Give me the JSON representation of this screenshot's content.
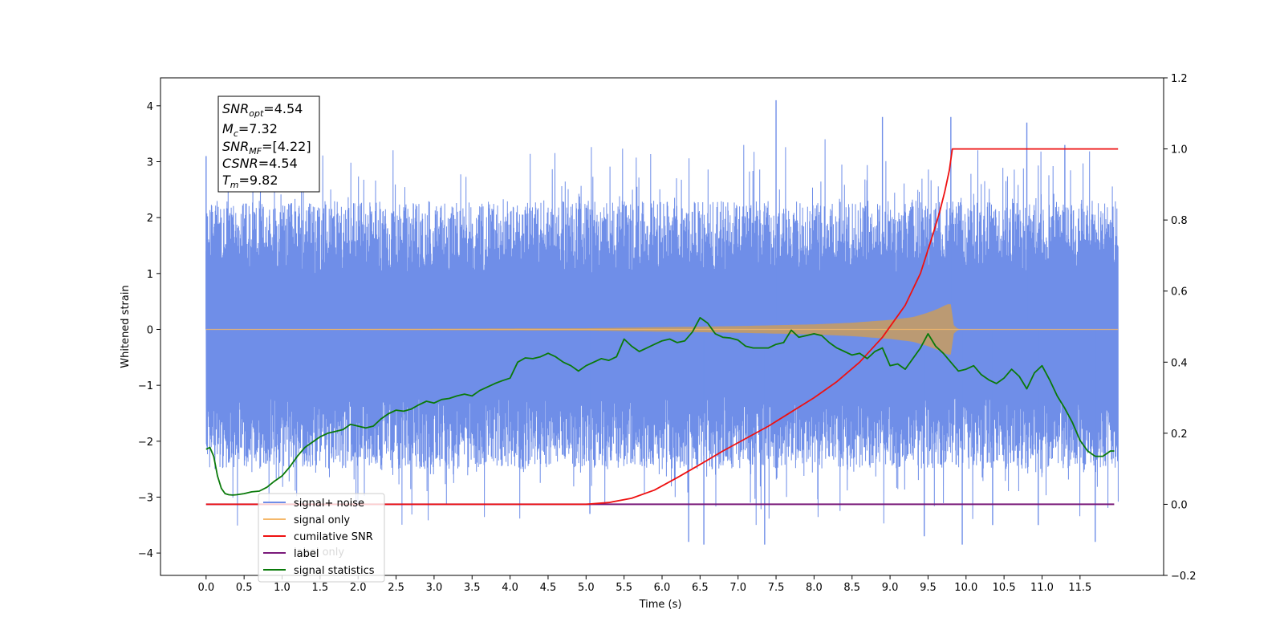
{
  "chart_data": {
    "type": "line",
    "title": "",
    "xlabel": "Time (s)",
    "ylabel_left": "Whitened strain",
    "ylabel_right": "",
    "xlim": [
      -0.6,
      12.6
    ],
    "ylim_left": [
      -4.4,
      4.5
    ],
    "ylim_right": [
      -0.2,
      1.2
    ],
    "x_ticks": [
      "0.0",
      "0.5",
      "1.0",
      "1.5",
      "2.0",
      "2.5",
      "3.0",
      "3.5",
      "4.0",
      "4.5",
      "5.0",
      "5.5",
      "6.0",
      "6.5",
      "7.0",
      "7.5",
      "8.0",
      "8.5",
      "9.0",
      "9.5",
      "10.0",
      "10.5",
      "11.0",
      "11.5"
    ],
    "y_ticks_left": [
      "4",
      "3",
      "2",
      "1",
      "0",
      "−1",
      "−2",
      "−3",
      "−4"
    ],
    "y_ticks_right": [
      "1.2",
      "1.0",
      "0.8",
      "0.6",
      "0.4",
      "0.2",
      "0.0",
      "−0.2"
    ],
    "grid": false,
    "legend_position": "bottom-left",
    "series": [
      {
        "name": "signal+ noise",
        "axis": "left",
        "color": "#6f8ee8",
        "description_values": {
          "x_range": [
            0.0,
            12.0
          ],
          "band_upper_typical": 2.0,
          "band_lower_typical": -2.0,
          "peaks": [
            [
              0.0,
              3.1
            ],
            [
              7.5,
              4.1
            ],
            [
              9.8,
              3.8
            ],
            [
              8.9,
              3.8
            ],
            [
              10.8,
              3.7
            ],
            [
              11.3,
              3.3
            ]
          ],
          "troughs": [
            [
              6.35,
              -3.8
            ],
            [
              6.55,
              -3.85
            ],
            [
              7.35,
              -3.85
            ],
            [
              9.45,
              -3.7
            ],
            [
              9.95,
              -3.85
            ],
            [
              10.35,
              -3.5
            ],
            [
              10.95,
              -3.5
            ],
            [
              11.7,
              -3.8
            ],
            [
              5.05,
              -3.3
            ]
          ]
        }
      },
      {
        "name": "signal only",
        "axis": "left",
        "color": "#f5b86a",
        "envelope_x": [
          0.0,
          5.0,
          6.0,
          7.0,
          8.0,
          8.5,
          9.0,
          9.3,
          9.5,
          9.65,
          9.75,
          9.8,
          9.82,
          9.9,
          12.0
        ],
        "envelope_amp": [
          0.0,
          0.02,
          0.04,
          0.06,
          0.09,
          0.12,
          0.17,
          0.22,
          0.3,
          0.38,
          0.45,
          0.45,
          0.1,
          0.0,
          0.0
        ]
      },
      {
        "name": "cumilative SNR",
        "axis": "right",
        "color": "#ee1111",
        "x": [
          0.0,
          5.0,
          5.3,
          5.6,
          5.9,
          6.2,
          6.5,
          6.8,
          7.1,
          7.4,
          7.7,
          8.0,
          8.3,
          8.6,
          8.9,
          9.2,
          9.4,
          9.55,
          9.65,
          9.72,
          9.78,
          9.82,
          12.0
        ],
        "values": [
          0.0,
          0.0,
          0.005,
          0.017,
          0.04,
          0.075,
          0.112,
          0.15,
          0.185,
          0.22,
          0.26,
          0.3,
          0.345,
          0.4,
          0.47,
          0.56,
          0.65,
          0.75,
          0.82,
          0.88,
          0.94,
          1.0,
          1.0
        ]
      },
      {
        "name": "label",
        "axis": "right",
        "color": "#7a1a7a",
        "x": [
          0.0,
          11.95
        ],
        "values": [
          0.0,
          0.0
        ]
      },
      {
        "name": "signal statistics",
        "axis": "right",
        "color": "#0a7a0a",
        "x": [
          0.0,
          0.05,
          0.1,
          0.15,
          0.2,
          0.25,
          0.3,
          0.35,
          0.4,
          0.5,
          0.6,
          0.7,
          0.8,
          0.9,
          1.0,
          1.1,
          1.2,
          1.3,
          1.4,
          1.5,
          1.6,
          1.7,
          1.8,
          1.9,
          2.0,
          2.1,
          2.2,
          2.3,
          2.4,
          2.5,
          2.6,
          2.7,
          2.8,
          2.9,
          3.0,
          3.1,
          3.2,
          3.3,
          3.4,
          3.5,
          3.6,
          3.7,
          3.8,
          3.9,
          4.0,
          4.1,
          4.2,
          4.3,
          4.4,
          4.5,
          4.6,
          4.7,
          4.8,
          4.9,
          5.0,
          5.1,
          5.2,
          5.3,
          5.4,
          5.5,
          5.6,
          5.7,
          5.8,
          5.9,
          6.0,
          6.1,
          6.2,
          6.3,
          6.4,
          6.5,
          6.6,
          6.7,
          6.8,
          6.9,
          7.0,
          7.1,
          7.2,
          7.3,
          7.4,
          7.5,
          7.6,
          7.7,
          7.8,
          7.9,
          8.0,
          8.1,
          8.2,
          8.3,
          8.4,
          8.5,
          8.6,
          8.7,
          8.8,
          8.9,
          9.0,
          9.1,
          9.2,
          9.3,
          9.4,
          9.5,
          9.6,
          9.7,
          9.8,
          9.9,
          10.0,
          10.1,
          10.2,
          10.3,
          10.4,
          10.5,
          10.6,
          10.7,
          10.8,
          10.9,
          11.0,
          11.1,
          11.2,
          11.3,
          11.4,
          11.5,
          11.6,
          11.7,
          11.8,
          11.9,
          11.95
        ],
        "values": [
          0.155,
          0.16,
          0.135,
          0.08,
          0.045,
          0.03,
          0.027,
          0.026,
          0.027,
          0.03,
          0.035,
          0.037,
          0.048,
          0.065,
          0.08,
          0.105,
          0.135,
          0.16,
          0.175,
          0.19,
          0.2,
          0.205,
          0.21,
          0.225,
          0.22,
          0.215,
          0.22,
          0.24,
          0.255,
          0.265,
          0.262,
          0.268,
          0.28,
          0.29,
          0.285,
          0.295,
          0.298,
          0.305,
          0.31,
          0.305,
          0.32,
          0.33,
          0.34,
          0.348,
          0.355,
          0.4,
          0.412,
          0.41,
          0.415,
          0.425,
          0.415,
          0.4,
          0.39,
          0.375,
          0.39,
          0.4,
          0.41,
          0.405,
          0.415,
          0.465,
          0.445,
          0.43,
          0.44,
          0.45,
          0.46,
          0.465,
          0.455,
          0.46,
          0.485,
          0.525,
          0.51,
          0.48,
          0.47,
          0.468,
          0.462,
          0.445,
          0.44,
          0.44,
          0.44,
          0.45,
          0.455,
          0.49,
          0.47,
          0.475,
          0.48,
          0.475,
          0.455,
          0.44,
          0.43,
          0.42,
          0.425,
          0.41,
          0.43,
          0.44,
          0.39,
          0.395,
          0.38,
          0.41,
          0.44,
          0.48,
          0.445,
          0.425,
          0.4,
          0.375,
          0.38,
          0.39,
          0.365,
          0.35,
          0.34,
          0.355,
          0.38,
          0.36,
          0.325,
          0.37,
          0.39,
          0.35,
          0.305,
          0.27,
          0.23,
          0.18,
          0.15,
          0.135,
          0.135,
          0.15,
          0.15
        ]
      }
    ],
    "legend": [
      {
        "label": "signal+ noise",
        "color": "#6f8ee8"
      },
      {
        "label": "signal only",
        "color": "#f5b86a"
      },
      {
        "label": "cumilative SNR",
        "color": "#ee1111"
      },
      {
        "label": "label",
        "color": "#7a1a7a"
      },
      {
        "label": "signal statistics",
        "color": "#0a7a0a"
      }
    ],
    "legend_hidden_text": "label only",
    "annotation": {
      "snr_opt": {
        "main": "SNR",
        "sub": "opt",
        "value": "=4.54"
      },
      "mc": {
        "main": "M",
        "sub": "c",
        "value": "=7.32"
      },
      "snr_mf": {
        "main": "SNR",
        "sub": "MF",
        "value": "=[4.22]"
      },
      "csnr": {
        "main": "CSNR",
        "sub": "",
        "value": "=4.54"
      },
      "tm": {
        "main": "T",
        "sub": "m",
        "value": "=9.82"
      }
    }
  }
}
